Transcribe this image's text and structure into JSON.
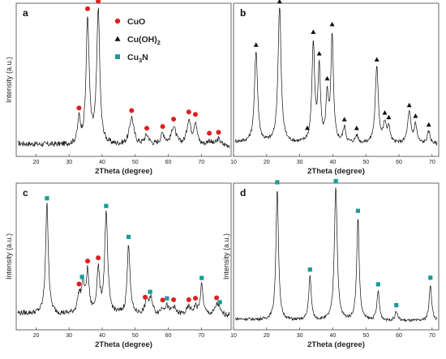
{
  "figure": {
    "legend": [
      {
        "marker": "circle",
        "label": "CuO",
        "color": "#e02020"
      },
      {
        "marker": "triangle",
        "label": "Cu(OH)",
        "sub": "2",
        "color": "#111111"
      },
      {
        "marker": "square",
        "label": "Cu",
        "sub": "3",
        "label_after": "N",
        "color": "#1a9a9a"
      }
    ]
  },
  "chart_data": [
    {
      "panel": "a",
      "type": "line",
      "xlabel": "2Theta (degree)",
      "ylabel": "Intensity (a.u.)",
      "xlim": [
        14,
        79
      ],
      "ylim": [
        0,
        1
      ],
      "xticks": [
        20,
        30,
        40,
        50,
        60,
        70
      ],
      "series": [
        {
          "baseline": 0.07,
          "peaks": [
            [
              33.0,
              0.16,
              0.5
            ],
            [
              35.6,
              0.82,
              0.55
            ],
            [
              38.8,
              0.88,
              0.55
            ],
            [
              48.9,
              0.18,
              0.8
            ],
            [
              53.5,
              0.06,
              0.8
            ],
            [
              58.3,
              0.07,
              0.8
            ],
            [
              61.6,
              0.12,
              0.8
            ],
            [
              66.2,
              0.16,
              0.7
            ],
            [
              68.2,
              0.14,
              0.6
            ],
            [
              72.4,
              0.03,
              0.7
            ],
            [
              75.2,
              0.04,
              0.7
            ]
          ],
          "noise": 0.018
        }
      ],
      "markers": [
        {
          "type": "circle",
          "x": 33.0
        },
        {
          "type": "circle",
          "x": 35.6
        },
        {
          "type": "circle",
          "x": 38.8
        },
        {
          "type": "circle",
          "x": 48.9
        },
        {
          "type": "circle",
          "x": 53.5
        },
        {
          "type": "circle",
          "x": 58.3
        },
        {
          "type": "circle",
          "x": 61.6
        },
        {
          "type": "circle",
          "x": 66.2
        },
        {
          "type": "circle",
          "x": 68.2
        },
        {
          "type": "circle",
          "x": 72.4
        },
        {
          "type": "circle",
          "x": 75.2
        }
      ]
    },
    {
      "panel": "b",
      "type": "line",
      "xlabel": "2Theta (degree)",
      "ylabel": "",
      "xlim": [
        10,
        72
      ],
      "ylim": [
        0,
        1
      ],
      "xticks": [
        10,
        20,
        30,
        40,
        50,
        60,
        70
      ],
      "series": [
        {
          "baseline": 0.08,
          "peaks": [
            [
              16.8,
              0.6,
              0.55
            ],
            [
              23.9,
              0.9,
              0.55
            ],
            [
              34.1,
              0.65,
              0.5
            ],
            [
              35.9,
              0.48,
              0.45
            ],
            [
              38.3,
              0.3,
              0.45
            ],
            [
              39.8,
              0.7,
              0.45
            ],
            [
              43.5,
              0.1,
              0.5
            ],
            [
              47.2,
              0.05,
              0.5
            ],
            [
              53.3,
              0.5,
              0.55
            ],
            [
              55.7,
              0.12,
              0.5
            ],
            [
              56.9,
              0.1,
              0.5
            ],
            [
              63.1,
              0.2,
              0.6
            ],
            [
              65.0,
              0.12,
              0.5
            ],
            [
              69.0,
              0.08,
              0.5
            ]
          ],
          "noise": 0.012
        }
      ],
      "markers": [
        {
          "type": "triangle",
          "x": 16.8
        },
        {
          "type": "triangle",
          "x": 23.9
        },
        {
          "type": "triangle",
          "x": 32.3
        },
        {
          "type": "triangle",
          "x": 34.1
        },
        {
          "type": "triangle",
          "x": 35.9
        },
        {
          "type": "triangle",
          "x": 38.3
        },
        {
          "type": "triangle",
          "x": 39.8
        },
        {
          "type": "triangle",
          "x": 43.5
        },
        {
          "type": "triangle",
          "x": 47.2
        },
        {
          "type": "triangle",
          "x": 53.3
        },
        {
          "type": "triangle",
          "x": 55.7
        },
        {
          "type": "triangle",
          "x": 56.9
        },
        {
          "type": "triangle",
          "x": 63.1
        },
        {
          "type": "triangle",
          "x": 65.0
        },
        {
          "type": "triangle",
          "x": 69.0
        }
      ]
    },
    {
      "panel": "c",
      "type": "line",
      "xlabel": "2Theta (degree)",
      "ylabel": "Intensity (a.u.)",
      "xlim": [
        14,
        79
      ],
      "ylim": [
        0,
        1
      ],
      "xticks": [
        20,
        30,
        40,
        50,
        60,
        70
      ],
      "series": [
        {
          "baseline": 0.1,
          "peaks": [
            [
              23.3,
              0.75,
              0.5
            ],
            [
              33.0,
              0.12,
              0.6
            ],
            [
              34.2,
              0.2,
              0.5
            ],
            [
              35.6,
              0.28,
              0.5
            ],
            [
              38.8,
              0.3,
              0.5
            ],
            [
              41.2,
              0.68,
              0.55
            ],
            [
              48.0,
              0.48,
              0.5
            ],
            [
              53.5,
              0.1,
              0.6
            ],
            [
              54.8,
              0.1,
              0.6
            ],
            [
              58.3,
              0.04,
              0.7
            ],
            [
              59.6,
              0.05,
              0.6
            ],
            [
              61.6,
              0.05,
              0.7
            ],
            [
              66.2,
              0.05,
              0.7
            ],
            [
              68.2,
              0.05,
              0.6
            ],
            [
              70.1,
              0.2,
              0.5
            ],
            [
              74.6,
              0.05,
              0.6
            ],
            [
              75.2,
              0.04,
              0.6
            ]
          ],
          "noise": 0.018
        }
      ],
      "markers": [
        {
          "type": "square",
          "x": 23.3
        },
        {
          "type": "square",
          "x": 33.9
        },
        {
          "type": "circle",
          "x": 33.0
        },
        {
          "type": "circle",
          "x": 35.6
        },
        {
          "type": "circle",
          "x": 38.8
        },
        {
          "type": "square",
          "x": 41.2
        },
        {
          "type": "square",
          "x": 48.0
        },
        {
          "type": "circle",
          "x": 53.0
        },
        {
          "type": "square",
          "x": 54.5
        },
        {
          "type": "circle",
          "x": 58.3
        },
        {
          "type": "square",
          "x": 59.6
        },
        {
          "type": "circle",
          "x": 61.6
        },
        {
          "type": "circle",
          "x": 66.2
        },
        {
          "type": "circle",
          "x": 68.2
        },
        {
          "type": "square",
          "x": 70.1
        },
        {
          "type": "circle",
          "x": 74.6
        },
        {
          "type": "square",
          "x": 75.6
        }
      ]
    },
    {
      "panel": "d",
      "type": "line",
      "xlabel": "2Theta (degree)",
      "ylabel": "Intensity (a.u.)",
      "xlim": [
        10,
        72
      ],
      "ylim": [
        0,
        1
      ],
      "xticks": [
        10,
        20,
        30,
        40,
        50,
        60,
        70
      ],
      "series": [
        {
          "baseline": 0.06,
          "peaks": [
            [
              23.2,
              0.9,
              0.45
            ],
            [
              33.1,
              0.3,
              0.45
            ],
            [
              40.9,
              0.92,
              0.5
            ],
            [
              47.6,
              0.7,
              0.45
            ],
            [
              53.7,
              0.2,
              0.45
            ],
            [
              59.2,
              0.06,
              0.5
            ],
            [
              69.5,
              0.25,
              0.45
            ]
          ],
          "noise": 0.01
        }
      ],
      "markers": [
        {
          "type": "square",
          "x": 23.2
        },
        {
          "type": "square",
          "x": 33.1
        },
        {
          "type": "square",
          "x": 40.9
        },
        {
          "type": "square",
          "x": 47.6
        },
        {
          "type": "square",
          "x": 53.7
        },
        {
          "type": "square",
          "x": 59.2
        },
        {
          "type": "square",
          "x": 69.5
        }
      ]
    }
  ]
}
